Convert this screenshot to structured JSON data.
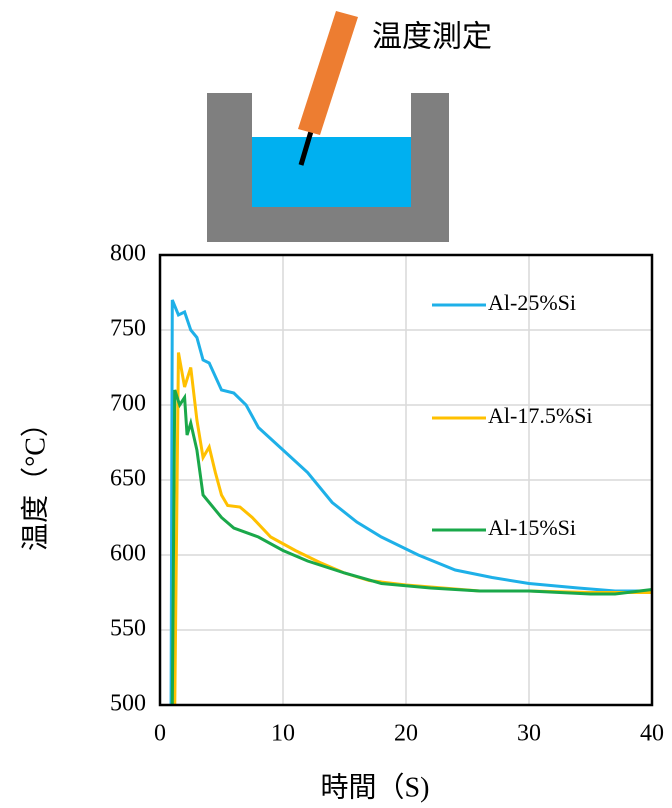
{
  "chart_data": {
    "type": "line",
    "annotations": [
      "温度測定"
    ],
    "xlabel": "時間（S)",
    "ylabel": "温度（°C）",
    "xlim": [
      0,
      40
    ],
    "xticks": [
      0,
      10,
      20,
      30,
      40
    ],
    "ylim": [
      500,
      800
    ],
    "yticks": [
      500,
      550,
      600,
      650,
      700,
      750,
      800
    ],
    "grid": true,
    "legend": "right",
    "series": [
      {
        "name": "Al-25%Si",
        "color": "#1eb0e8",
        "x": [
          0.9,
          1,
          1.5,
          2,
          2.5,
          3,
          3.5,
          4,
          5,
          6,
          7,
          8,
          10,
          12,
          14,
          16,
          18,
          21,
          24,
          27,
          30,
          34,
          37,
          40
        ],
        "values": [
          500,
          770,
          760,
          762,
          750,
          745,
          730,
          728,
          710,
          708,
          700,
          685,
          670,
          655,
          635,
          622,
          612,
          600,
          590,
          585,
          581,
          578,
          576,
          576
        ]
      },
      {
        "name": "Al-17.5%Si",
        "color": "#ffc000",
        "x": [
          1.2,
          1.5,
          2,
          2.5,
          3,
          3.5,
          4,
          4.5,
          5,
          5.5,
          6.5,
          7.5,
          9,
          11,
          13,
          15,
          17,
          20,
          23,
          26,
          30,
          35,
          40
        ],
        "values": [
          500,
          735,
          712,
          725,
          690,
          665,
          672,
          655,
          640,
          633,
          632,
          625,
          612,
          603,
          595,
          588,
          583,
          580,
          578,
          576,
          576,
          575,
          575
        ]
      },
      {
        "name": "Al-15%Si",
        "color": "#1aa84a",
        "x": [
          1,
          1.2,
          1.6,
          2,
          2.2,
          2.5,
          3,
          3.5,
          4,
          5,
          6,
          8,
          10,
          12,
          15,
          18,
          22,
          26,
          30,
          35,
          37,
          40
        ],
        "values": [
          500,
          710,
          700,
          705,
          680,
          688,
          670,
          640,
          635,
          625,
          618,
          612,
          603,
          596,
          588,
          581,
          578,
          576,
          576,
          574,
          574,
          577
        ]
      }
    ]
  }
}
